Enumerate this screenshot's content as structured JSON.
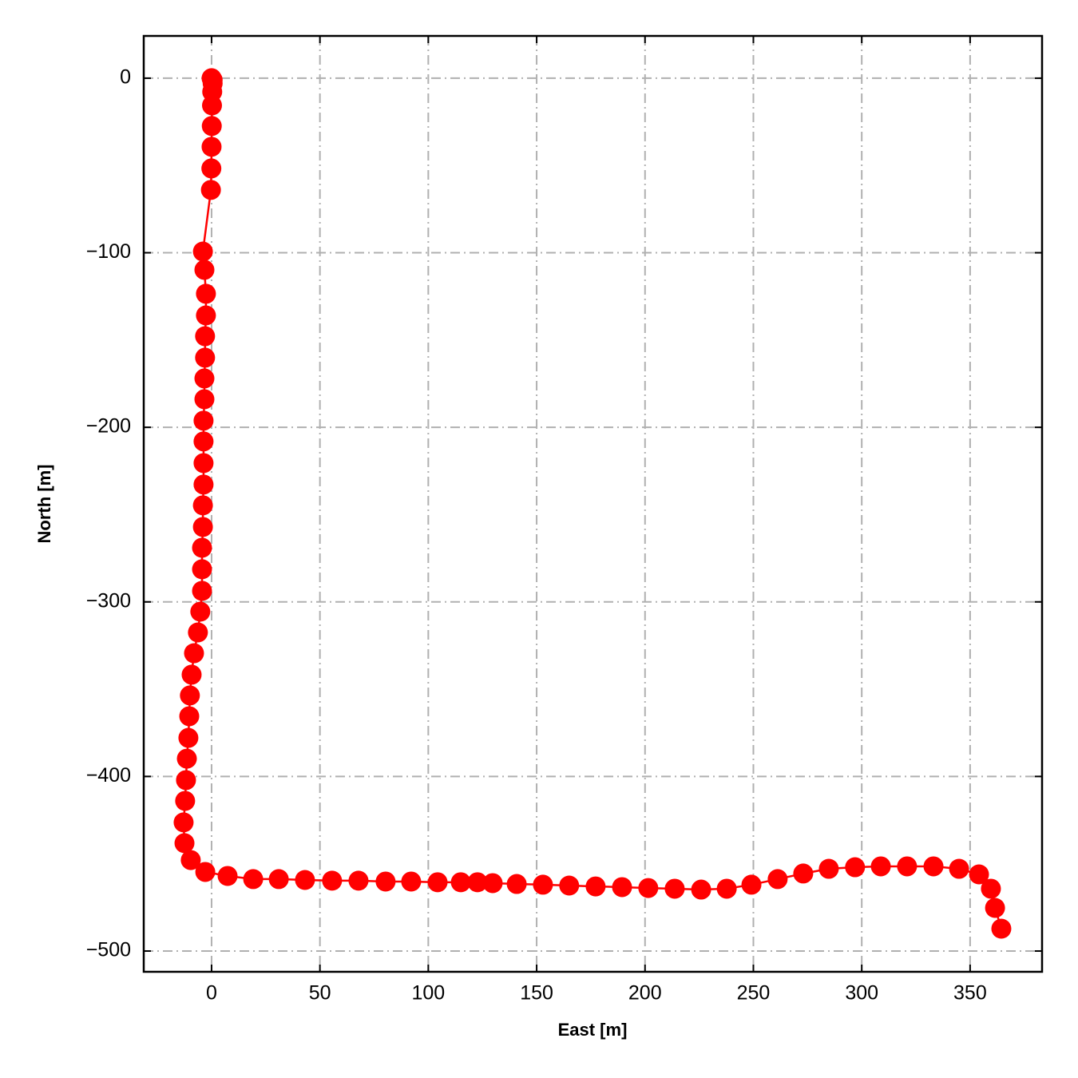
{
  "chart_data": {
    "type": "line",
    "xlabel": "East [m]",
    "ylabel": "North [m]",
    "x": [
      0,
      0.5,
      0.5,
      0.3,
      0.2,
      0.1,
      0,
      -0.1,
      -0.3,
      -4,
      -3.3,
      -2.6,
      -2.6,
      -3,
      -3,
      -3.3,
      -3.3,
      -3.7,
      -3.7,
      -3.7,
      -3.7,
      -4,
      -4,
      -4.4,
      -4.4,
      -4.4,
      -5.2,
      -6.3,
      -8.1,
      -9.2,
      -10,
      -10.3,
      -10.7,
      -11.4,
      -11.8,
      -12.2,
      -12.9,
      -12.5,
      -9.6,
      -2.9,
      7.4,
      19.2,
      31,
      43.1,
      55.6,
      67.8,
      80.3,
      92.1,
      104.3,
      115,
      122.7,
      129.7,
      140.8,
      152.9,
      165,
      177.2,
      189.4,
      201.5,
      213.7,
      225.9,
      237.7,
      249.1,
      261.2,
      273,
      284.8,
      296.9,
      308.8,
      320.9,
      333.1,
      344.9,
      354.1,
      359.6,
      361.5,
      364.4
    ],
    "y": [
      0,
      -1,
      -3,
      -7.8,
      -15.6,
      -27.4,
      -39.3,
      -51.7,
      -64,
      -99.3,
      -109.8,
      -123.5,
      -135.9,
      -147.8,
      -160.1,
      -172,
      -183.9,
      -196.2,
      -208.1,
      -220.5,
      -232.8,
      -244.7,
      -257.1,
      -269,
      -281.3,
      -293.7,
      -305.6,
      -317.5,
      -329.4,
      -341.7,
      -353.6,
      -365.5,
      -377.9,
      -389.8,
      -402.1,
      -414,
      -426.3,
      -438.2,
      -447.9,
      -454.7,
      -457,
      -458.8,
      -458.8,
      -459.3,
      -459.7,
      -459.7,
      -460.2,
      -460.2,
      -460.6,
      -460.6,
      -460.6,
      -461.1,
      -461.6,
      -462,
      -462.5,
      -463,
      -463.4,
      -463.9,
      -464.3,
      -464.8,
      -464.3,
      -462,
      -458.8,
      -455.6,
      -452.9,
      -452,
      -451.5,
      -451.5,
      -451.5,
      -452.9,
      -456.1,
      -464.3,
      -475.3,
      -487.2
    ],
    "color": "#ff0000",
    "xlim": [
      -31.3,
      383.2
    ],
    "ylim": [
      -511.9,
      24.2
    ],
    "xticks": [
      0,
      50,
      100,
      150,
      200,
      250,
      300,
      350
    ],
    "yticks": [
      {
        "value": 0,
        "label": "0"
      },
      {
        "value": -100,
        "label": "−100"
      },
      {
        "value": -200,
        "label": "−200"
      },
      {
        "value": -300,
        "label": "−300"
      },
      {
        "value": -400,
        "label": "−400"
      },
      {
        "value": -500,
        "label": "−500"
      }
    ],
    "grid": true
  }
}
